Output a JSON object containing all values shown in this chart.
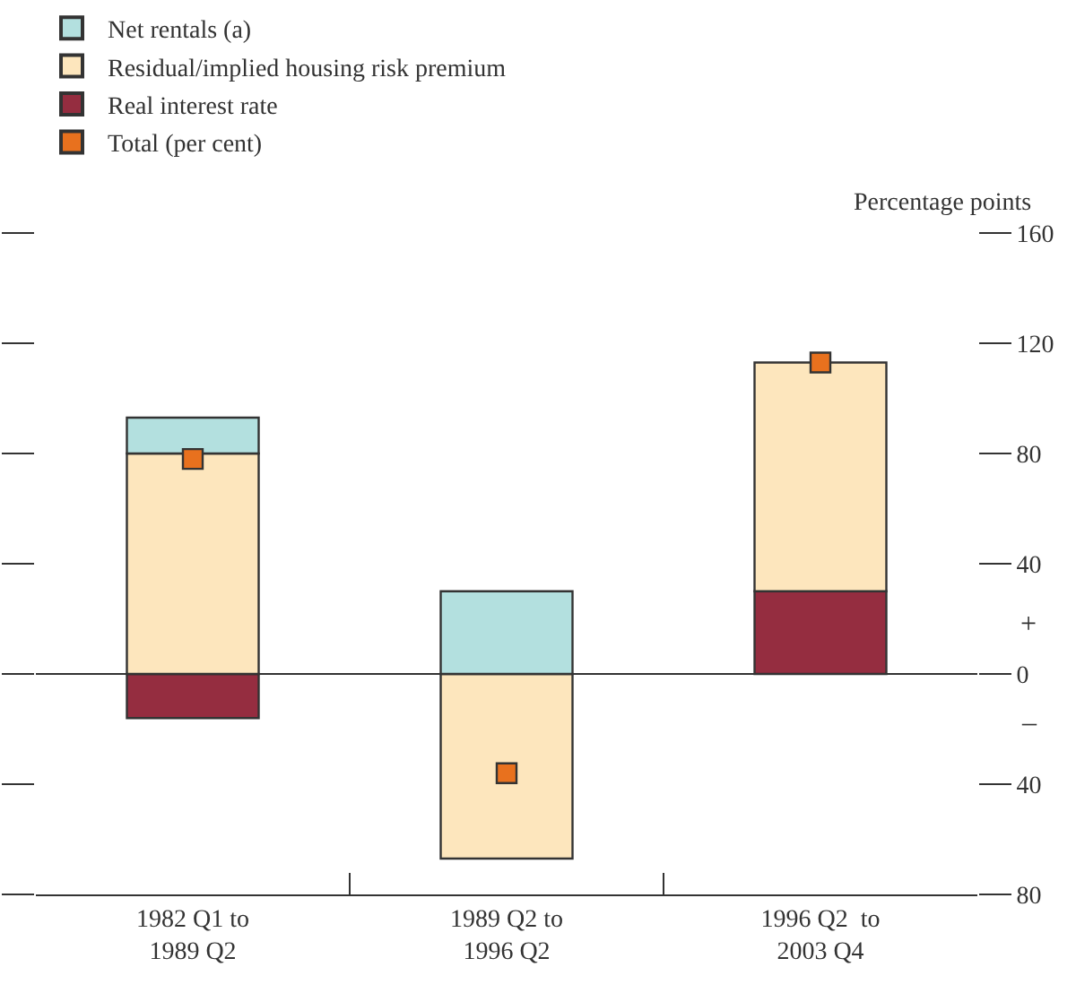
{
  "chart_data": {
    "type": "bar",
    "stacked": true,
    "ylabel": "Percentage points",
    "categories": [
      "1982 Q1 to\n1989 Q2",
      "1989 Q2 to\n1996 Q2",
      "1996 Q2  to\n2003 Q4"
    ],
    "series": [
      {
        "name": "Real interest rate",
        "color": "#952d40",
        "values": [
          -16,
          null,
          30
        ]
      },
      {
        "name": "Residual/implied housing risk premium",
        "color": "#fde6bd",
        "values": [
          80,
          -67,
          83
        ]
      },
      {
        "name": "Net rentals (a)",
        "color": "#b3e0df",
        "values": [
          13,
          30,
          null
        ]
      },
      {
        "name": "Total (per cent)",
        "type": "scatter",
        "marker": "square",
        "color": "#e8711e",
        "values": [
          78,
          -36,
          113
        ]
      }
    ],
    "ylim": [
      -80,
      160
    ],
    "yticks": [
      {
        "value": -80,
        "label": "80"
      },
      {
        "value": -40,
        "label": "40"
      },
      0,
      40,
      80,
      120,
      160
    ],
    "annotations": [
      "+",
      "–"
    ],
    "legend": "top left"
  }
}
